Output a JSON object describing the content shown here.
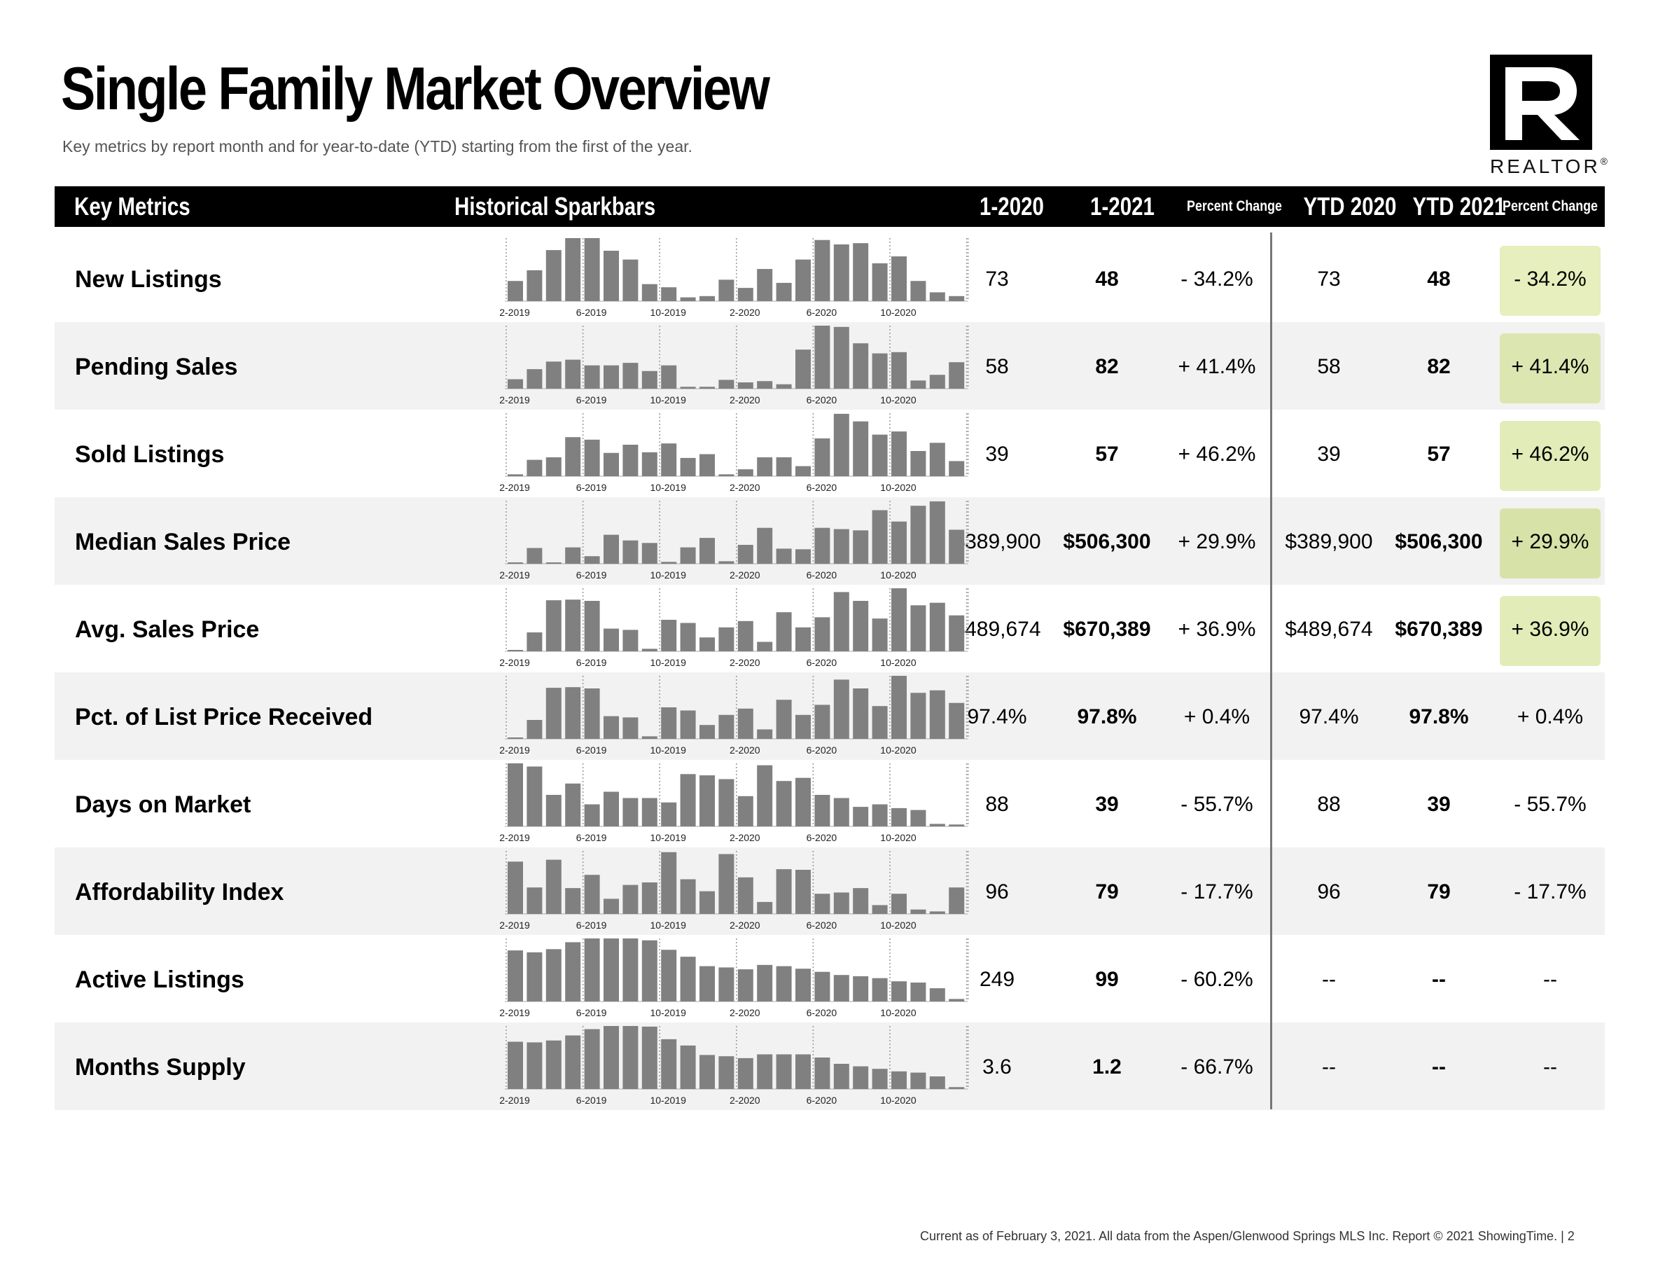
{
  "page": {
    "title": "Single Family Market Overview",
    "subtitle": "Key metrics by report month and for year-to-date (YTD) starting from the first of the year.",
    "logo_text": "REALTOR",
    "logo_mark": "®",
    "footer": "Current as of February 3, 2021.  All data from the Aspen/Glenwood Springs MLS Inc. Report © 2021 ShowingTime.  |  2"
  },
  "header": {
    "key_metrics": "Key Metrics",
    "sparkbars": "Historical Sparkbars",
    "m1": "1-2020",
    "m2": "1-2021",
    "pct": "Percent Change",
    "y1": "YTD 2020",
    "y2": "YTD 2021",
    "pct2": "Percent Change"
  },
  "sparkbar_ticks": [
    "2-2019",
    "6-2019",
    "10-2019",
    "2-2020",
    "6-2020",
    "10-2020"
  ],
  "colors": {
    "bar": "#808080",
    "header_bg": "#000000",
    "shade": "#f2f2f2"
  },
  "rows": [
    {
      "label": "New Listings",
      "m1": "73",
      "m2": "48",
      "pct": "- 34.2%",
      "y1": "73",
      "y2": "48",
      "pct2": "- 34.2%",
      "highlight": "#e6efbd",
      "bars": [
        0.32,
        0.49,
        0.81,
        1.0,
        1.0,
        0.8,
        0.66,
        0.27,
        0.22,
        0.06,
        0.08,
        0.34,
        0.21,
        0.51,
        0.29,
        0.66,
        0.97,
        0.9,
        0.92,
        0.6,
        0.71,
        0.32,
        0.14,
        0.08
      ]
    },
    {
      "label": "Pending Sales",
      "m1": "58",
      "m2": "82",
      "pct": "+ 41.4%",
      "y1": "58",
      "y2": "82",
      "pct2": "+ 41.4%",
      "highlight": "#dce6b1",
      "bars": [
        0.15,
        0.31,
        0.43,
        0.46,
        0.37,
        0.37,
        0.41,
        0.28,
        0.37,
        0.03,
        0.03,
        0.14,
        0.1,
        0.12,
        0.07,
        0.62,
        1.0,
        0.98,
        0.72,
        0.56,
        0.58,
        0.13,
        0.22,
        0.42
      ]
    },
    {
      "label": "Sold Listings",
      "m1": "39",
      "m2": "57",
      "pct": "+ 46.2%",
      "y1": "39",
      "y2": "57",
      "pct2": "+ 46.2%",
      "highlight": "#e2ecb8",
      "bars": [
        0.03,
        0.26,
        0.3,
        0.62,
        0.58,
        0.37,
        0.5,
        0.38,
        0.52,
        0.29,
        0.35,
        0.03,
        0.11,
        0.3,
        0.3,
        0.16,
        0.6,
        0.99,
        0.87,
        0.66,
        0.71,
        0.4,
        0.53,
        0.24
      ]
    },
    {
      "label": "Median Sales Price",
      "m1": "$389,900",
      "m2": "$506,300",
      "pct": "+ 29.9%",
      "y1": "$389,900",
      "y2": "$506,300",
      "pct2": "+ 29.9%",
      "highlight": "#d7e2a9",
      "bars": [
        0.01,
        0.25,
        0.01,
        0.26,
        0.12,
        0.46,
        0.37,
        0.33,
        0.03,
        0.26,
        0.41,
        0.04,
        0.3,
        0.57,
        0.24,
        0.23,
        0.57,
        0.55,
        0.53,
        0.85,
        0.67,
        0.92,
        0.99,
        0.54
      ]
    },
    {
      "label": "Avg. Sales Price",
      "m1": "$489,674",
      "m2": "$670,389",
      "pct": "+ 36.9%",
      "y1": "$489,674",
      "y2": "$670,389",
      "pct2": "+ 36.9%",
      "highlight": "#e2ecb8",
      "bars": [
        0.02,
        0.3,
        0.81,
        0.82,
        0.8,
        0.36,
        0.34,
        0.04,
        0.5,
        0.45,
        0.22,
        0.38,
        0.48,
        0.15,
        0.62,
        0.38,
        0.54,
        0.94,
        0.8,
        0.52,
        1.0,
        0.73,
        0.77,
        0.57
      ]
    },
    {
      "label": "Pct. of List Price Received",
      "m1": "97.4%",
      "m2": "97.8%",
      "pct": "+ 0.4%",
      "y1": "97.4%",
      "y2": "97.8%",
      "pct2": "+ 0.4%",
      "highlight": "",
      "bars": [
        0.02,
        0.3,
        0.81,
        0.82,
        0.8,
        0.36,
        0.34,
        0.04,
        0.5,
        0.45,
        0.22,
        0.38,
        0.48,
        0.15,
        0.62,
        0.38,
        0.54,
        0.94,
        0.8,
        0.52,
        1.0,
        0.73,
        0.77,
        0.57
      ]
    },
    {
      "label": "Days on Market",
      "m1": "88",
      "m2": "39",
      "pct": "- 55.7%",
      "y1": "88",
      "y2": "39",
      "pct2": "- 55.7%",
      "highlight": "",
      "bars": [
        1.0,
        0.95,
        0.5,
        0.68,
        0.35,
        0.55,
        0.45,
        0.45,
        0.38,
        0.83,
        0.81,
        0.75,
        0.48,
        0.97,
        0.72,
        0.77,
        0.5,
        0.45,
        0.31,
        0.35,
        0.29,
        0.26,
        0.04,
        0.03
      ]
    },
    {
      "label": "Affordability Index",
      "m1": "96",
      "m2": "79",
      "pct": "- 17.7%",
      "y1": "96",
      "y2": "79",
      "pct2": "- 17.7%",
      "highlight": "",
      "bars": [
        0.83,
        0.42,
        0.86,
        0.41,
        0.62,
        0.24,
        0.46,
        0.5,
        0.98,
        0.55,
        0.36,
        0.95,
        0.58,
        0.19,
        0.71,
        0.7,
        0.32,
        0.34,
        0.41,
        0.14,
        0.32,
        0.07,
        0.04,
        0.42
      ]
    },
    {
      "label": "Active Listings",
      "m1": "249",
      "m2": "99",
      "pct": "- 60.2%",
      "y1": "--",
      "y2": "--",
      "pct2": "--",
      "highlight": "",
      "bars": [
        0.81,
        0.78,
        0.83,
        0.94,
        1.0,
        1.0,
        1.0,
        0.97,
        0.82,
        0.71,
        0.56,
        0.54,
        0.51,
        0.58,
        0.56,
        0.52,
        0.47,
        0.42,
        0.4,
        0.37,
        0.32,
        0.3,
        0.21,
        0.04
      ]
    },
    {
      "label": "Months Supply",
      "m1": "3.6",
      "m2": "1.2",
      "pct": "- 66.7%",
      "y1": "--",
      "y2": "--",
      "pct2": "--",
      "highlight": "",
      "bars": [
        0.75,
        0.74,
        0.77,
        0.85,
        0.95,
        1.0,
        1.0,
        0.99,
        0.79,
        0.69,
        0.54,
        0.52,
        0.49,
        0.55,
        0.55,
        0.55,
        0.5,
        0.4,
        0.36,
        0.32,
        0.28,
        0.26,
        0.2,
        0.03
      ]
    }
  ]
}
